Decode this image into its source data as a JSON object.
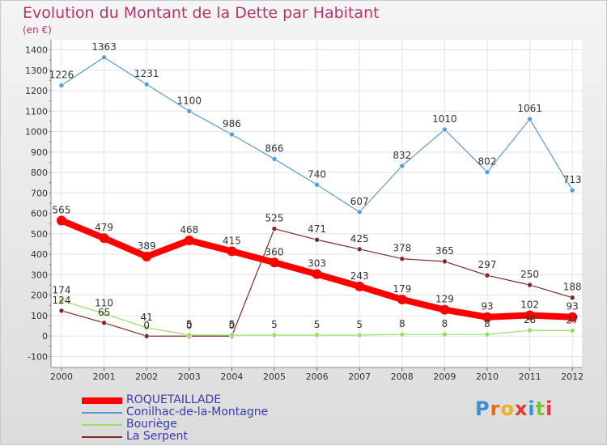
{
  "header": {
    "title": "Evolution du Montant de la Dette par Habitant",
    "unit": "(en €)"
  },
  "logo": {
    "text": "Proxiti",
    "letters": [
      "P",
      "r",
      "o",
      "x",
      "i",
      "t",
      "i"
    ]
  },
  "chart_data": {
    "type": "line",
    "title": "Evolution du Montant de la Dette par Habitant",
    "subtitle": "(en €)",
    "xlabel": "",
    "ylabel": "",
    "x": [
      "2000",
      "2001",
      "2002",
      "2003",
      "2004",
      "2005",
      "2006",
      "2007",
      "2008",
      "2009",
      "2010",
      "2011",
      "2012"
    ],
    "ylim": [
      -100,
      1400
    ],
    "yticks": [
      "-100",
      "0",
      "100",
      "200",
      "300",
      "400",
      "500",
      "600",
      "700",
      "800",
      "900",
      "1000",
      "1100",
      "1200",
      "1300",
      "1400"
    ],
    "grid": true,
    "legend_position": "bottom-left",
    "series": [
      {
        "name": "ROQUETAILLADE",
        "color": "#ff0000",
        "values": [
          565,
          479,
          389,
          468,
          415,
          360,
          303,
          243,
          179,
          129,
          93,
          102,
          93
        ],
        "labels": [
          "565",
          "479",
          "389",
          "468",
          "415",
          "360",
          "303",
          "243",
          "179",
          "129",
          "93",
          "102",
          "93"
        ]
      },
      {
        "name": "Conilhac-de-la-Montagne",
        "color": "#5b9bd5",
        "values": [
          1226,
          1363,
          1231,
          1100,
          986,
          866,
          740,
          607,
          832,
          1010,
          802,
          1061,
          713
        ],
        "labels": [
          "1226",
          "1363",
          "1231",
          "1100",
          "986",
          "866",
          "740",
          "607",
          "832",
          "1010",
          "802",
          "1061",
          "713"
        ]
      },
      {
        "name": "Bouriège",
        "color": "#99dd66",
        "values": [
          174,
          110,
          41,
          5,
          5,
          5,
          5,
          5,
          8,
          8,
          8,
          28,
          27
        ],
        "labels": [
          "174",
          "110",
          "41",
          "5",
          "5",
          "5",
          "5",
          "5",
          "8",
          "8",
          "8",
          "28",
          "27"
        ]
      },
      {
        "name": "La Serpent",
        "color": "#7b2a2a",
        "values": [
          124,
          65,
          0,
          0,
          0,
          525,
          471,
          425,
          378,
          365,
          297,
          250,
          188
        ],
        "labels": [
          "124",
          "65",
          "0",
          "0",
          "0",
          "525",
          "471",
          "425",
          "378",
          "365",
          "297",
          "250",
          "188"
        ]
      }
    ]
  }
}
